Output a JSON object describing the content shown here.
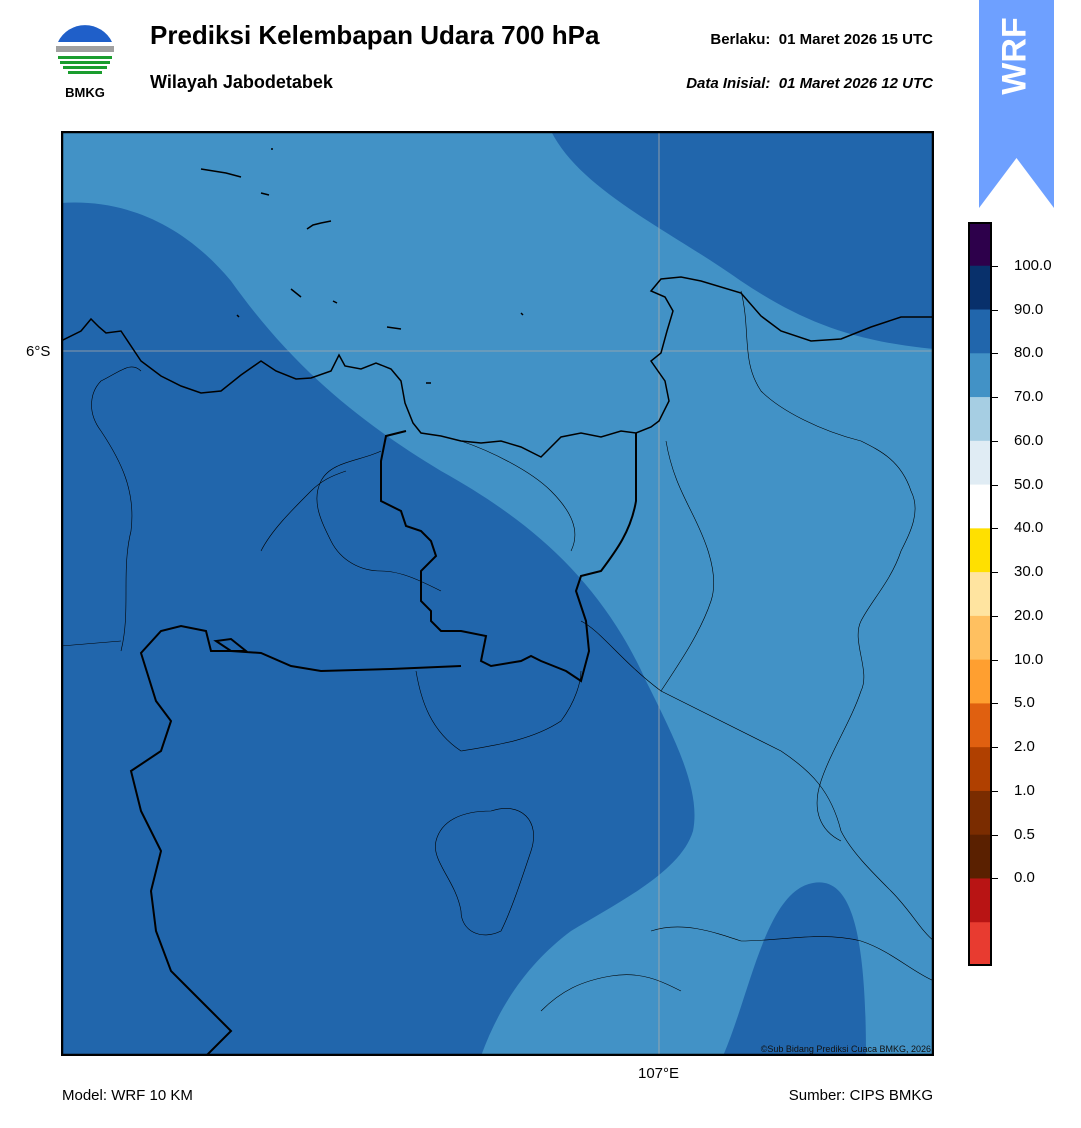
{
  "header": {
    "title": "Prediksi Kelembapan Udara 700 hPa",
    "subtitle": "Wilayah Jabodetabek",
    "valid_label": "Berlaku:",
    "valid_time": "01 Maret 2026 15 UTC",
    "init_label": "Data Inisial:",
    "init_time": "01 Maret 2026 12 UTC"
  },
  "logo": {
    "text": "BMKG",
    "icon": "bmkg-logo-icon"
  },
  "badge": {
    "text": "WRF",
    "color": "#6ea0ff"
  },
  "map": {
    "lat_label": "6°S",
    "lon_label": "107°E",
    "copyright": "©Sub Bidang Prediksi Cuaca BMKG, 2026",
    "fill_colors": {
      "70_80": "#4292c6",
      "80_90": "#2166ac"
    }
  },
  "footer": {
    "model": "Model: WRF 10 KM",
    "source": "Sumber: CIPS BMKG"
  },
  "colorbar": {
    "labels": [
      "100.0",
      "90.0",
      "80.0",
      "70.0",
      "60.0",
      "50.0",
      "40.0",
      "30.0",
      "20.0",
      "10.0",
      "5.0",
      "2.0",
      "1.0",
      "0.5",
      "0.0"
    ],
    "colors": [
      "#2d004b",
      "#08306b",
      "#2166ac",
      "#4292c6",
      "#a6cee3",
      "#e0ecf4",
      "#ffffff",
      "#ffe000",
      "#ffe4a0",
      "#ffc060",
      "#ff9f30",
      "#e06010",
      "#b04000",
      "#7a2c00",
      "#5a2000",
      "#b81414",
      "#e83b30"
    ]
  }
}
